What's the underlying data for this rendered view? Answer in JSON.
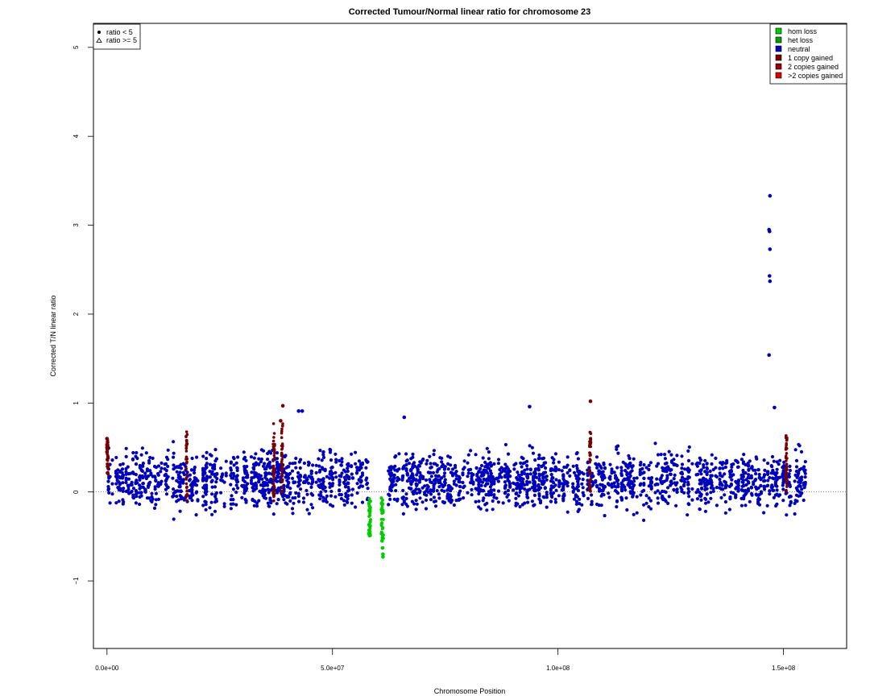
{
  "chart_data": {
    "type": "scatter",
    "title": "Corrected Tumour/Normal linear ratio for chromosome  23",
    "xlabel": "Chromosome Position",
    "ylabel": "Corrected T/N linear ratio",
    "xlim": [
      -3000000,
      164000000
    ],
    "ylim": [
      -1.76,
      5.27
    ],
    "x_ticks": [
      0,
      50000000,
      100000000,
      150000000
    ],
    "x_tick_labels": [
      "0.0e+00",
      "5.0e+07",
      "1.0e+08",
      "1.5e+08"
    ],
    "y_ticks": [
      -1,
      0,
      1,
      2,
      3,
      4,
      5
    ],
    "y_tick_labels": [
      "−1",
      "0",
      "1",
      "2",
      "3",
      "4",
      "5"
    ],
    "reference_line_y": 0,
    "shape_legend": [
      {
        "symbol": "●",
        "label": "ratio < 5"
      },
      {
        "symbol": "△",
        "label": "ratio >= 5"
      }
    ],
    "series": [
      {
        "name": "hom loss",
        "color": "#00cc00"
      },
      {
        "name": "het loss",
        "color": "#00a000"
      },
      {
        "name": "neutral",
        "color": "#0000bb"
      },
      {
        "name": "1 copy gained",
        "color": "#770000"
      },
      {
        "name": "2 copies gained",
        "color": "#9a0000"
      },
      {
        "name": ">2 copies gained",
        "color": "#dd0000"
      }
    ],
    "neutral_segments": [
      {
        "x_start": 200000,
        "x_end": 58000000
      },
      {
        "x_start": 62000000,
        "x_end": 155000000
      }
    ],
    "notable_points": [
      {
        "x": 147000000,
        "y": 3.33,
        "series": "neutral"
      },
      {
        "x": 146800000,
        "y": 2.95,
        "series": "neutral"
      },
      {
        "x": 146900000,
        "y": 2.93,
        "series": "neutral"
      },
      {
        "x": 147000000,
        "y": 2.73,
        "series": "neutral"
      },
      {
        "x": 146900000,
        "y": 2.43,
        "series": "neutral"
      },
      {
        "x": 147000000,
        "y": 2.37,
        "series": "neutral"
      },
      {
        "x": 146800000,
        "y": 1.54,
        "series": "neutral"
      },
      {
        "x": 93700000,
        "y": 0.96,
        "series": "neutral"
      },
      {
        "x": 148000000,
        "y": 0.95,
        "series": "neutral"
      },
      {
        "x": 107200000,
        "y": 1.02,
        "series": "1 copy gained"
      },
      {
        "x": 39000000,
        "y": 0.97,
        "series": "1 copy gained"
      },
      {
        "x": 38500000,
        "y": 0.8,
        "series": "1 copy gained"
      },
      {
        "x": 42500000,
        "y": 0.91,
        "series": "neutral"
      },
      {
        "x": 43300000,
        "y": 0.91,
        "series": "neutral"
      },
      {
        "x": 65900000,
        "y": 0.84,
        "series": "neutral"
      },
      {
        "x": 0,
        "y": 0.6,
        "series": "1 copy gained"
      },
      {
        "x": 0,
        "y": 0.53,
        "series": "1 copy gained"
      },
      {
        "x": 0,
        "y": 0.5,
        "series": "1 copy gained"
      },
      {
        "x": 0,
        "y": 0.45,
        "series": "1 copy gained"
      },
      {
        "x": 61200000,
        "y": -0.7,
        "series": "hom loss"
      },
      {
        "x": 61200000,
        "y": -0.73,
        "series": "hom loss"
      },
      {
        "x": 61100000,
        "y": -0.63,
        "series": "hom loss"
      },
      {
        "x": 61000000,
        "y": -0.55,
        "series": "hom loss"
      },
      {
        "x": 58200000,
        "y": -0.48,
        "series": "hom loss"
      }
    ],
    "gained_regions": [
      {
        "x_start": 0,
        "x_end": 300000,
        "y_min": 0.2,
        "y_max": 0.6,
        "series": "1 copy gained"
      },
      {
        "x_start": 17500000,
        "x_end": 17800000,
        "y_min": -0.1,
        "y_max": 0.7,
        "series": "1 copy gained"
      },
      {
        "x_start": 36800000,
        "x_end": 37200000,
        "y_min": -0.15,
        "y_max": 0.78,
        "series": "1 copy gained"
      },
      {
        "x_start": 38700000,
        "x_end": 39000000,
        "y_min": -0.05,
        "y_max": 0.8,
        "series": "1 copy gained"
      },
      {
        "x_start": 107000000,
        "x_end": 107300000,
        "y_min": 0.0,
        "y_max": 0.7,
        "series": "1 copy gained"
      },
      {
        "x_start": 150500000,
        "x_end": 150800000,
        "y_min": 0.0,
        "y_max": 0.65,
        "series": "1 copy gained"
      }
    ],
    "loss_regions": [
      {
        "x_start": 58000000,
        "x_end": 58500000,
        "y_min": -0.5,
        "y_max": -0.05,
        "series": "hom loss"
      },
      {
        "x_start": 60800000,
        "x_end": 61300000,
        "y_min": -0.55,
        "y_max": -0.05,
        "series": "hom loss"
      }
    ]
  }
}
